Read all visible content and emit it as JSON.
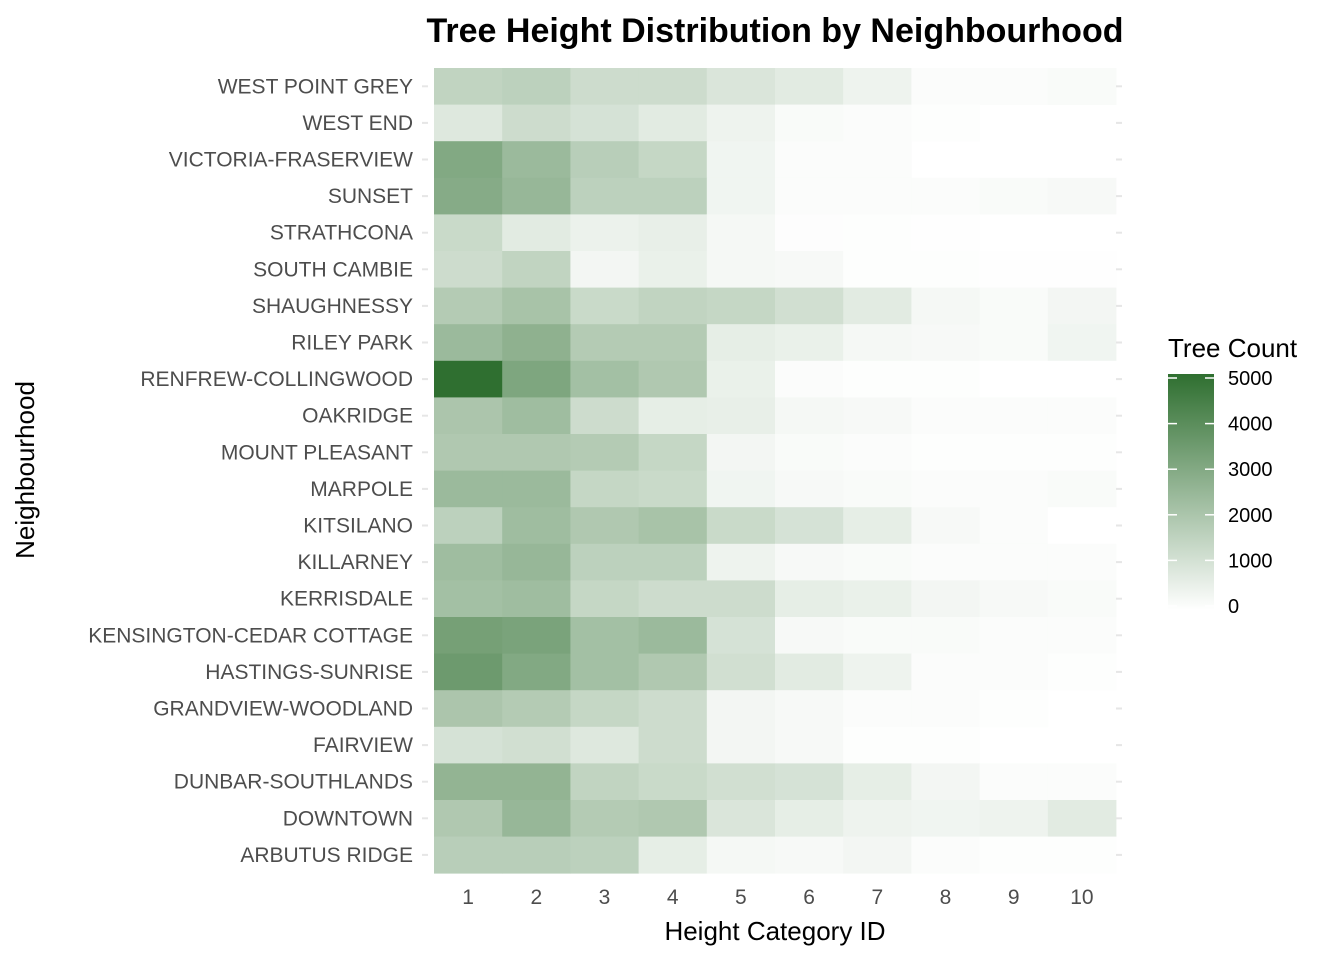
{
  "chart_data": {
    "type": "heatmap",
    "title": "Tree Height Distribution by Neighbourhood",
    "xlabel": "Height Category ID",
    "ylabel": "Neighbourhood",
    "x": [
      1,
      2,
      3,
      4,
      5,
      6,
      7,
      8,
      9,
      10
    ],
    "y": [
      "WEST POINT GREY",
      "WEST END",
      "VICTORIA-FRASERVIEW",
      "SUNSET",
      "STRATHCONA",
      "SOUTH CAMBIE",
      "SHAUGHNESSY",
      "RILEY PARK",
      "RENFREW-COLLINGWOOD",
      "OAKRIDGE",
      "MOUNT PLEASANT",
      "MARPOLE",
      "KITSILANO",
      "KILLARNEY",
      "KERRISDALE",
      "KENSINGTON-CEDAR COTTAGE",
      "HASTINGS-SUNRISE",
      "GRANDVIEW-WOODLAND",
      "FAIRVIEW",
      "DUNBAR-SOUTHLANDS",
      "DOWNTOWN",
      "ARBUTUS RIDGE"
    ],
    "values": [
      [
        1500,
        1600,
        1200,
        1200,
        900,
        700,
        400,
        100,
        100,
        150
      ],
      [
        800,
        1200,
        1000,
        700,
        400,
        150,
        100,
        50,
        null,
        null
      ],
      [
        3000,
        2400,
        1700,
        1400,
        350,
        100,
        100,
        null,
        null,
        null
      ],
      [
        2900,
        2500,
        1600,
        1600,
        350,
        100,
        100,
        100,
        150,
        200
      ],
      [
        1300,
        700,
        450,
        550,
        250,
        60,
        40,
        30,
        10,
        10
      ],
      [
        1200,
        1500,
        300,
        500,
        250,
        200,
        50,
        50,
        20,
        20
      ],
      [
        1800,
        2100,
        1300,
        1500,
        1400,
        1100,
        700,
        250,
        150,
        300
      ],
      [
        2400,
        2700,
        1800,
        1800,
        600,
        500,
        250,
        200,
        150,
        350
      ],
      [
        5000,
        3100,
        2200,
        1900,
        500,
        100,
        50,
        50,
        0,
        0
      ],
      [
        2000,
        2300,
        1200,
        600,
        550,
        250,
        200,
        100,
        100,
        100
      ],
      [
        1900,
        1900,
        1800,
        1400,
        300,
        150,
        100,
        50,
        50,
        50
      ],
      [
        2400,
        2400,
        1400,
        1300,
        350,
        200,
        150,
        100,
        100,
        150
      ],
      [
        1600,
        2300,
        1900,
        2100,
        1300,
        1000,
        600,
        200,
        100,
        0
      ],
      [
        2300,
        2500,
        1600,
        1600,
        400,
        200,
        150,
        100,
        100,
        100
      ],
      [
        2200,
        2300,
        1400,
        1200,
        1200,
        600,
        500,
        300,
        200,
        150
      ],
      [
        3300,
        3200,
        2200,
        2400,
        1000,
        200,
        150,
        150,
        100,
        100
      ],
      [
        3500,
        3000,
        2200,
        1900,
        1100,
        700,
        400,
        100,
        100,
        50
      ],
      [
        2000,
        1800,
        1400,
        1200,
        300,
        200,
        100,
        100,
        50,
        null
      ],
      [
        1000,
        1100,
        800,
        1200,
        300,
        200,
        50,
        50,
        null,
        null
      ],
      [
        2600,
        2600,
        1500,
        1300,
        1100,
        1000,
        600,
        300,
        100,
        100
      ],
      [
        1900,
        2500,
        1800,
        1900,
        900,
        600,
        400,
        350,
        400,
        700
      ],
      [
        1700,
        1700,
        1600,
        600,
        250,
        200,
        300,
        100,
        50,
        50
      ]
    ],
    "legend": {
      "title": "Tree Count",
      "ticks": [
        0,
        1000,
        2000,
        3000,
        4000,
        5000
      ],
      "low_color": "#ffffff",
      "high_color": "#2f6f30",
      "placement": "right"
    },
    "grid": false
  }
}
